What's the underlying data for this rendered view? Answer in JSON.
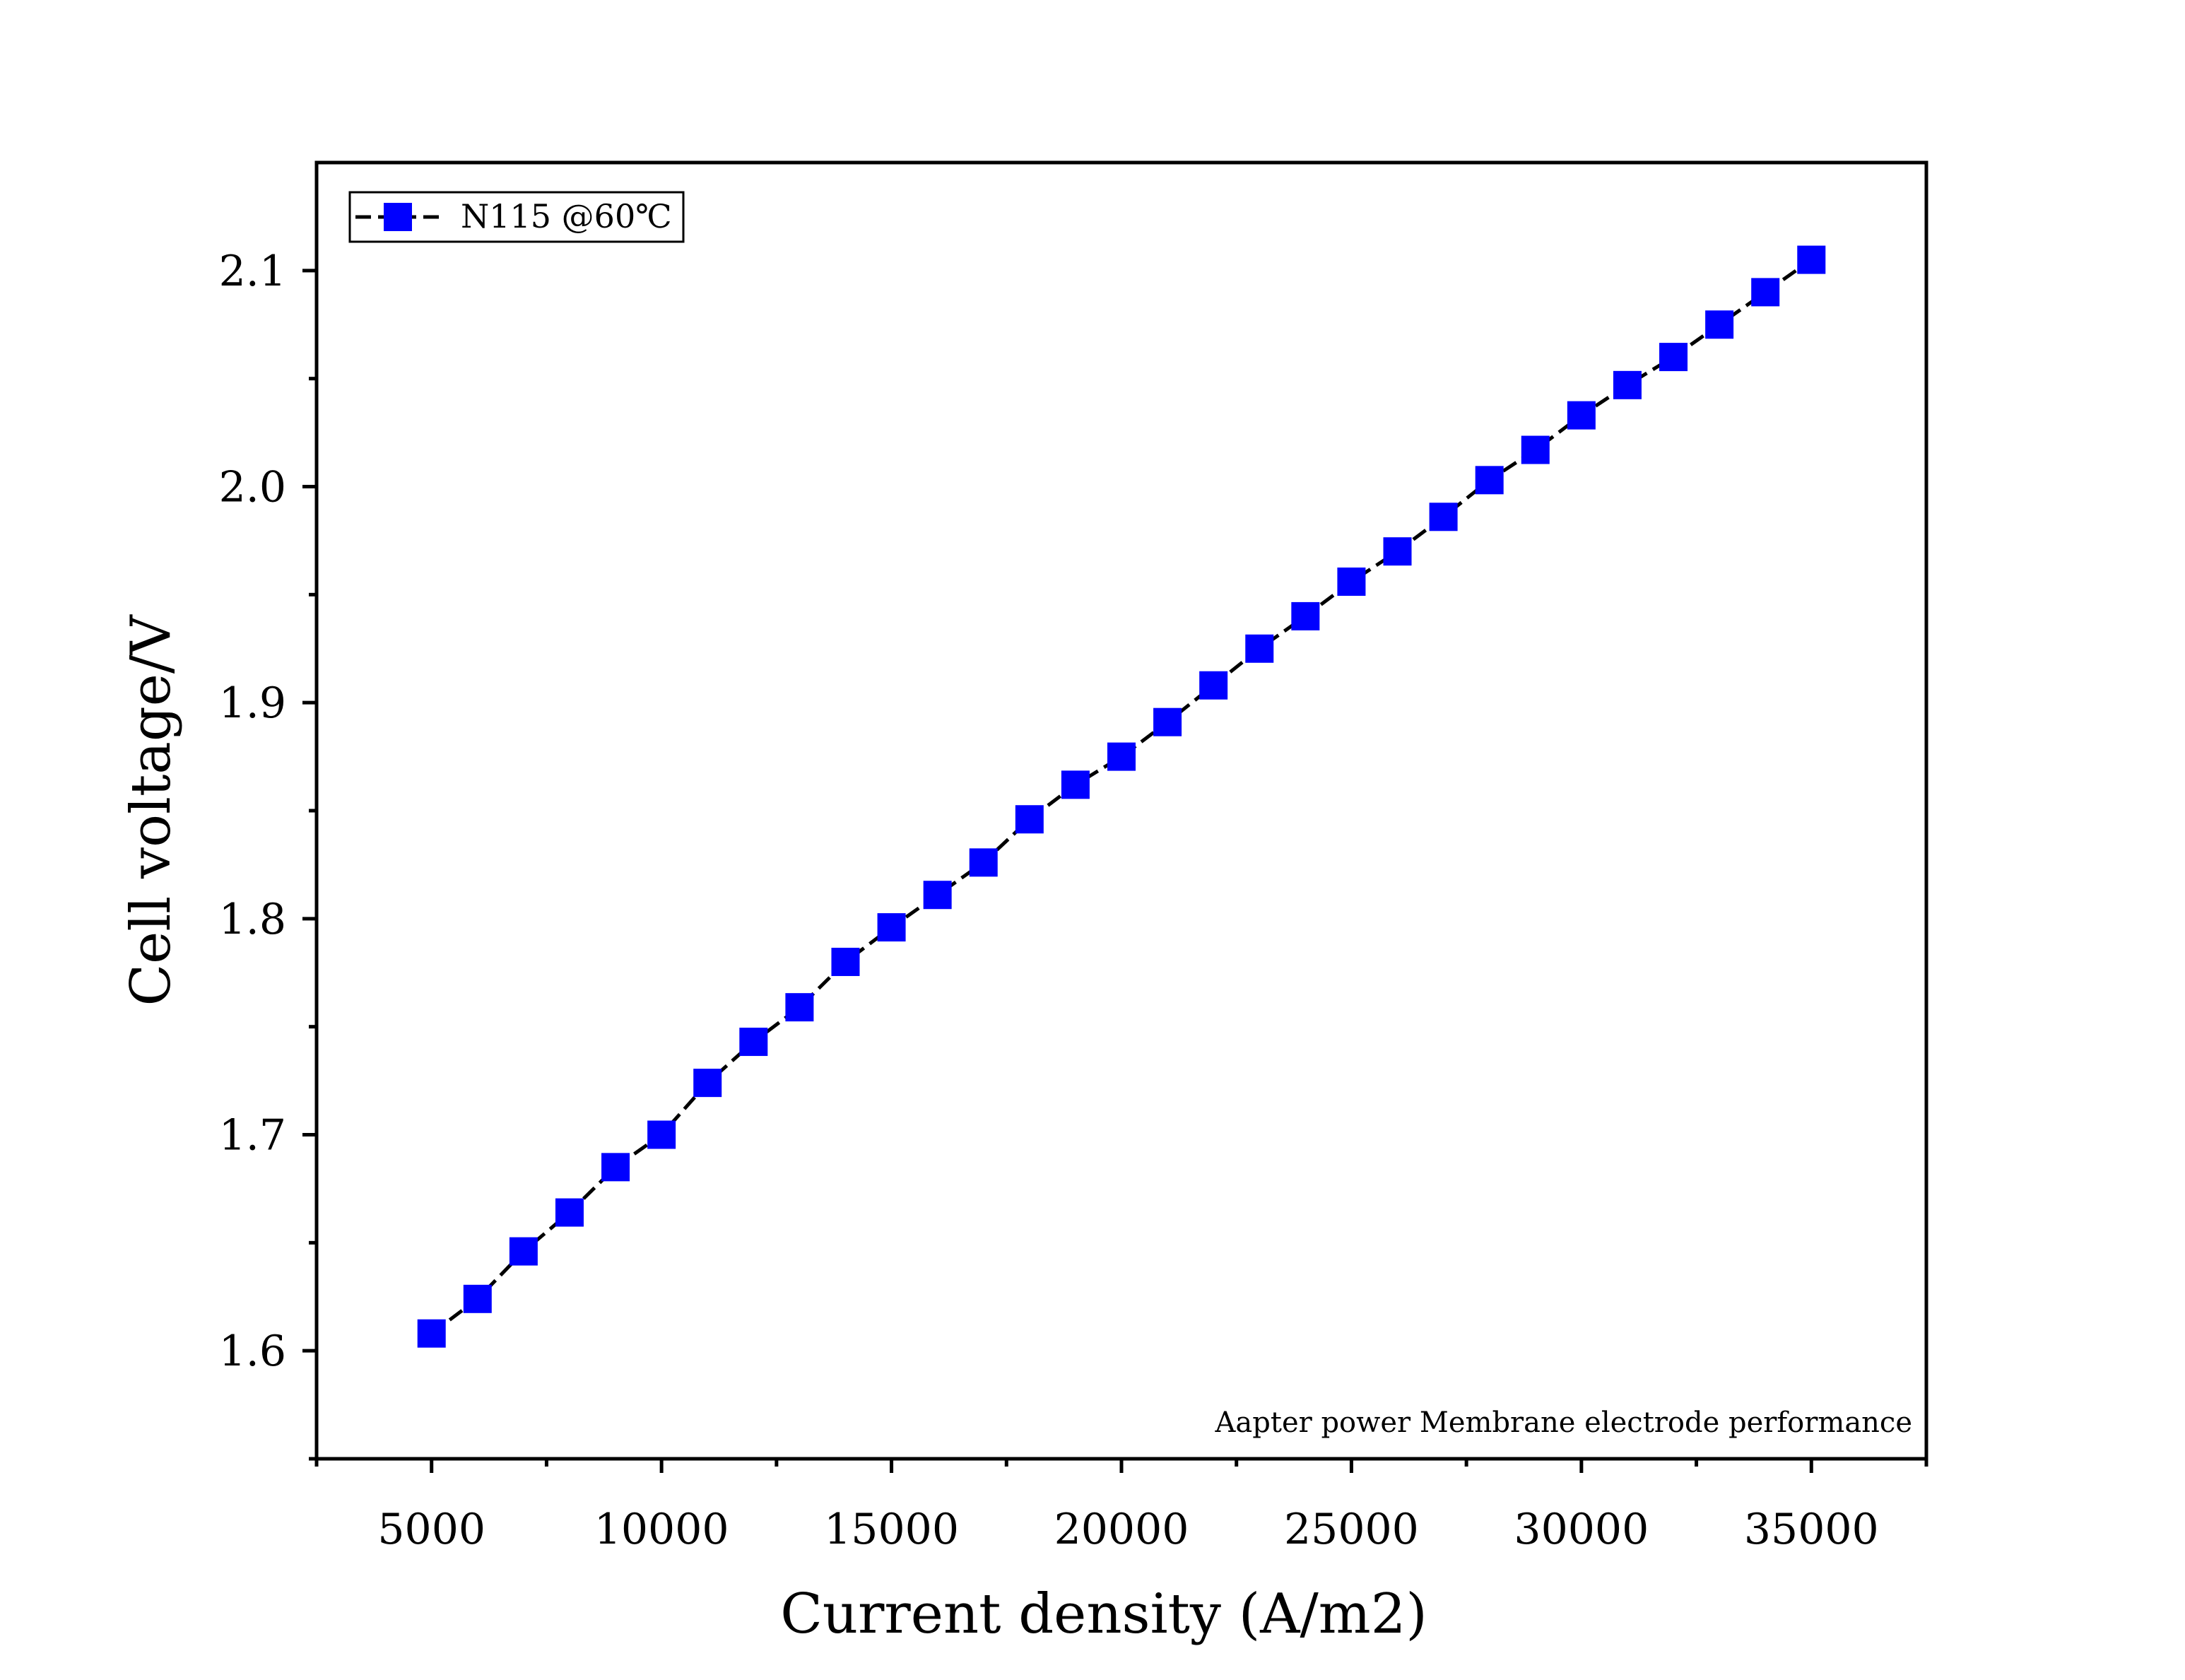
{
  "chart_data": {
    "type": "line",
    "title": "",
    "xlabel": "Current density (A/m2)",
    "ylabel": "Cell voltage/V",
    "xlim": [
      2500,
      37500
    ],
    "ylim": [
      1.55,
      2.15
    ],
    "x_ticks": [
      "5000",
      "10000",
      "15000",
      "20000",
      "25000",
      "30000",
      "35000"
    ],
    "y_ticks": [
      "1.6",
      "1.7",
      "1.8",
      "1.9",
      "2.0",
      "2.1"
    ],
    "legend_position": "top-left",
    "grid": false,
    "annotation": "Aapter power Membrane electrode performance",
    "series": [
      {
        "name": "N115 @60℃",
        "color": "#0000ff",
        "line_color": "#000000",
        "line_style": "dashed",
        "marker": "square",
        "x": [
          5000,
          6000,
          7000,
          8000,
          9000,
          10000,
          11000,
          12000,
          13000,
          14000,
          15000,
          16000,
          17000,
          18000,
          19000,
          20000,
          21000,
          22000,
          23000,
          24000,
          25000,
          26000,
          27000,
          28000,
          29000,
          30000,
          31000,
          32000,
          33000,
          34000,
          35000
        ],
        "y": [
          1.608,
          1.624,
          1.646,
          1.664,
          1.685,
          1.7,
          1.724,
          1.743,
          1.759,
          1.78,
          1.796,
          1.811,
          1.826,
          1.846,
          1.862,
          1.875,
          1.891,
          1.908,
          1.925,
          1.94,
          1.956,
          1.97,
          1.986,
          2.003,
          2.017,
          2.033,
          2.047,
          2.06,
          2.075,
          2.09,
          2.105
        ]
      }
    ]
  }
}
